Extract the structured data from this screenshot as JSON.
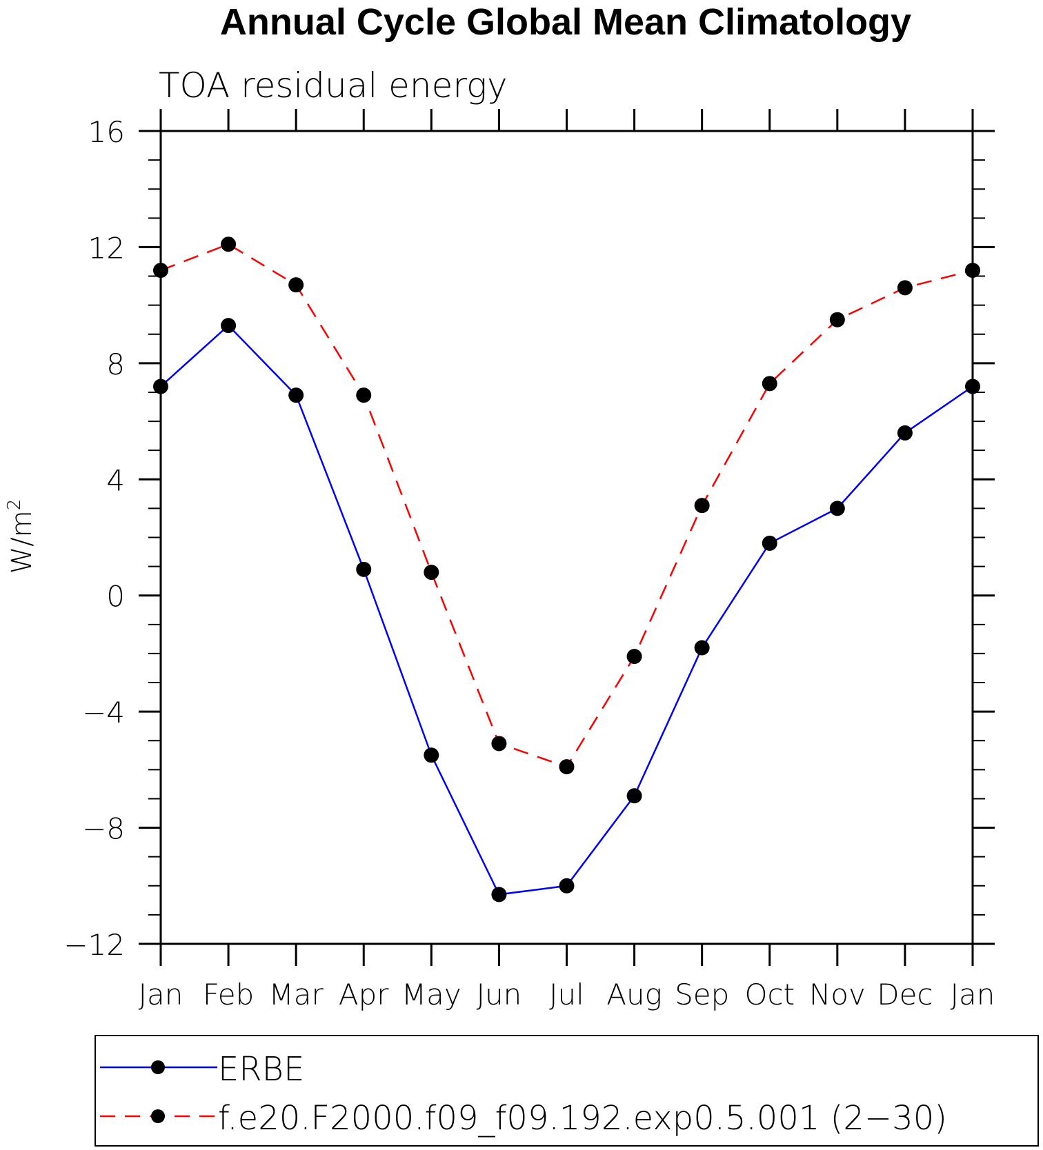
{
  "chart_data": {
    "type": "line",
    "title": "Annual Cycle Global Mean Climatology",
    "subtitle": "TOA residual energy",
    "ylabel": "W/m",
    "ylabel_superscript": "2",
    "ylim": [
      -12,
      16
    ],
    "yticks": [
      16,
      12,
      8,
      4,
      0,
      -4,
      -8,
      -12
    ],
    "ytick_labels": [
      "16",
      "12",
      "8",
      "4",
      "0",
      "−4",
      "−8",
      "−12"
    ],
    "categories": [
      "Jan",
      "Feb",
      "Mar",
      "Apr",
      "May",
      "Jun",
      "Jul",
      "Aug",
      "Sep",
      "Oct",
      "Nov",
      "Dec",
      "Jan"
    ],
    "grid": false,
    "legend_position": "bottom",
    "series": [
      {
        "name": "ERBE",
        "color": "#0000ff",
        "dash": "solid",
        "marker": "filled-circle",
        "values": [
          7.2,
          9.3,
          6.9,
          0.9,
          -5.5,
          -10.3,
          -10.0,
          -6.9,
          -1.8,
          1.8,
          3.0,
          5.6,
          7.2
        ]
      },
      {
        "name": "f.e20.F2000.f09_f09.192.exp0.5.001 (2−30)",
        "color": "#ff0000",
        "dash": "dashed",
        "marker": "filled-circle",
        "values": [
          11.2,
          12.1,
          10.7,
          6.9,
          0.8,
          -5.1,
          -5.9,
          -2.1,
          3.1,
          7.3,
          9.5,
          10.6,
          11.2
        ]
      }
    ]
  }
}
